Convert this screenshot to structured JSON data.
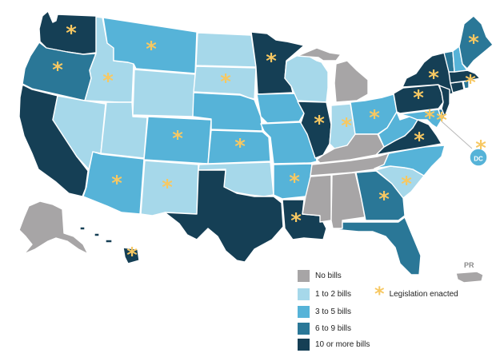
{
  "colors": {
    "none": "#a7a5a6",
    "c1_2": "#a6d8ea",
    "c3_5": "#56b3d8",
    "c6_9": "#2a7797",
    "c10": "#153f55",
    "star": "#f7c862"
  },
  "legend": {
    "no_bills": "No bills",
    "b1_2": "1 to 2 bills",
    "b3_5": "3 to 5 bills",
    "b6_9": "6 to 9 bills",
    "b10": "10 or more bills",
    "enacted": "Legislation enacted"
  },
  "labels": {
    "pr": "PR",
    "dc": "DC"
  },
  "states": {
    "WA": {
      "category": "10+",
      "enacted": true
    },
    "OR": {
      "category": "6-9",
      "enacted": true
    },
    "CA": {
      "category": "10+",
      "enacted": false
    },
    "ID": {
      "category": "1-2",
      "enacted": true
    },
    "NV": {
      "category": "1-2",
      "enacted": false
    },
    "UT": {
      "category": "1-2",
      "enacted": false
    },
    "AZ": {
      "category": "3-5",
      "enacted": true
    },
    "MT": {
      "category": "3-5",
      "enacted": true
    },
    "WY": {
      "category": "1-2",
      "enacted": false
    },
    "CO": {
      "category": "3-5",
      "enacted": true
    },
    "NM": {
      "category": "1-2",
      "enacted": true
    },
    "ND": {
      "category": "1-2",
      "enacted": false
    },
    "SD": {
      "category": "1-2",
      "enacted": true
    },
    "NE": {
      "category": "3-5",
      "enacted": false
    },
    "KS": {
      "category": "3-5",
      "enacted": true
    },
    "OK": {
      "category": "1-2",
      "enacted": false
    },
    "TX": {
      "category": "10+",
      "enacted": false
    },
    "MN": {
      "category": "10+",
      "enacted": true
    },
    "IA": {
      "category": "3-5",
      "enacted": false
    },
    "MO": {
      "category": "3-5",
      "enacted": false
    },
    "AR": {
      "category": "3-5",
      "enacted": true
    },
    "LA": {
      "category": "10+",
      "enacted": true
    },
    "WI": {
      "category": "1-2",
      "enacted": false
    },
    "IL": {
      "category": "10+",
      "enacted": true
    },
    "MI": {
      "category": "none",
      "enacted": false
    },
    "IN": {
      "category": "1-2",
      "enacted": true
    },
    "OH": {
      "category": "3-5",
      "enacted": true
    },
    "KY": {
      "category": "none",
      "enacted": false
    },
    "TN": {
      "category": "none",
      "enacted": false
    },
    "MS": {
      "category": "none",
      "enacted": false
    },
    "AL": {
      "category": "none",
      "enacted": false
    },
    "GA": {
      "category": "6-9",
      "enacted": true
    },
    "FL": {
      "category": "6-9",
      "enacted": false
    },
    "SC": {
      "category": "1-2",
      "enacted": true
    },
    "NC": {
      "category": "3-5",
      "enacted": false
    },
    "VA": {
      "category": "10+",
      "enacted": true
    },
    "WV": {
      "category": "3-5",
      "enacted": false
    },
    "PA": {
      "category": "10+",
      "enacted": true
    },
    "NY": {
      "category": "10+",
      "enacted": true
    },
    "VT": {
      "category": "6-9",
      "enacted": false
    },
    "NH": {
      "category": "3-5",
      "enacted": false
    },
    "ME": {
      "category": "6-9",
      "enacted": true
    },
    "MA": {
      "category": "10+",
      "enacted": true
    },
    "CT": {
      "category": "10+",
      "enacted": false
    },
    "RI": {
      "category": "6-9",
      "enacted": false
    },
    "NJ": {
      "category": "10+",
      "enacted": false
    },
    "DE": {
      "category": "6-9",
      "enacted": true
    },
    "MD": {
      "category": "3-5",
      "enacted": true
    },
    "AK": {
      "category": "none",
      "enacted": false
    },
    "HI": {
      "category": "10+",
      "enacted": true
    },
    "PR": {
      "category": "none",
      "enacted": false
    },
    "DC": {
      "category": "3-5",
      "enacted": true
    }
  }
}
